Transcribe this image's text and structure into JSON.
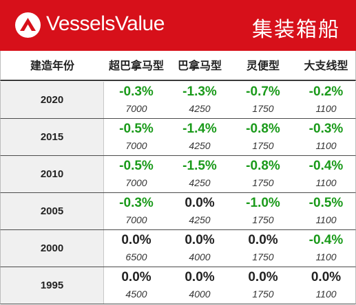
{
  "header": {
    "brand": "VesselsValue",
    "title": "集装箱船",
    "accent_color": "#d7101a",
    "logo_icon": "vesselsvalue-logo-icon"
  },
  "columns": [
    "建造年份",
    "超巴拿马型",
    "巴拿马型",
    "灵便型",
    "大支线型"
  ],
  "rows": [
    {
      "year": "2020",
      "cells": [
        {
          "pct": "-0.3%",
          "teu": "7000"
        },
        {
          "pct": "-1.3%",
          "teu": "4250"
        },
        {
          "pct": "-0.7%",
          "teu": "1750"
        },
        {
          "pct": "-0.2%",
          "teu": "1100"
        }
      ]
    },
    {
      "year": "2015",
      "cells": [
        {
          "pct": "-0.5%",
          "teu": "7000"
        },
        {
          "pct": "-1.4%",
          "teu": "4250"
        },
        {
          "pct": "-0.8%",
          "teu": "1750"
        },
        {
          "pct": "-0.3%",
          "teu": "1100"
        }
      ]
    },
    {
      "year": "2010",
      "cells": [
        {
          "pct": "-0.5%",
          "teu": "7000"
        },
        {
          "pct": "-1.5%",
          "teu": "4250"
        },
        {
          "pct": "-0.8%",
          "teu": "1750"
        },
        {
          "pct": "-0.4%",
          "teu": "1100"
        }
      ]
    },
    {
      "year": "2005",
      "cells": [
        {
          "pct": "-0.3%",
          "teu": "7000"
        },
        {
          "pct": "0.0%",
          "teu": "4250"
        },
        {
          "pct": "-1.0%",
          "teu": "1750"
        },
        {
          "pct": "-0.5%",
          "teu": "1100"
        }
      ]
    },
    {
      "year": "2000",
      "cells": [
        {
          "pct": "0.0%",
          "teu": "6500"
        },
        {
          "pct": "0.0%",
          "teu": "4000"
        },
        {
          "pct": "0.0%",
          "teu": "1750"
        },
        {
          "pct": "-0.4%",
          "teu": "1100"
        }
      ]
    },
    {
      "year": "1995",
      "cells": [
        {
          "pct": "0.0%",
          "teu": "4500"
        },
        {
          "pct": "0.0%",
          "teu": "4000"
        },
        {
          "pct": "0.0%",
          "teu": "1750"
        },
        {
          "pct": "0.0%",
          "teu": "1100"
        }
      ]
    }
  ],
  "colors": {
    "negative": "#1a9a1a",
    "neutral": "#222222",
    "year_cell_bg": "#f0f0f0"
  }
}
